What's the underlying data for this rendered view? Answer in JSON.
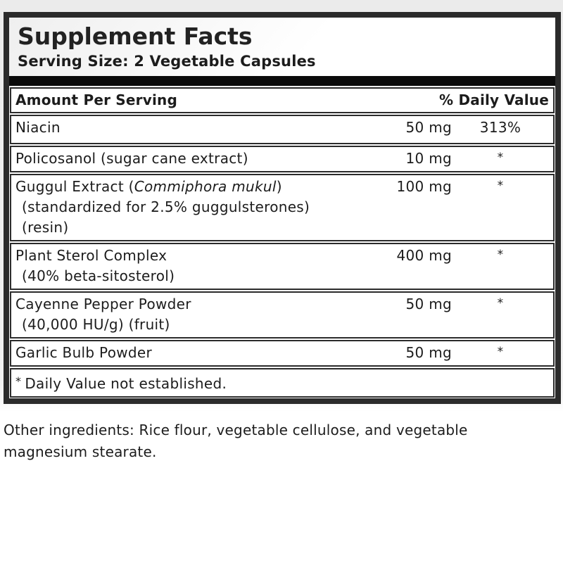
{
  "label": {
    "title": "Supplement Facts",
    "serving_size": "Serving Size: 2 Vegetable Capsules",
    "columns": {
      "amount_header": "Amount Per Serving",
      "dv_header": "% Daily Value"
    },
    "rows": [
      {
        "pre": "Niacin",
        "italic": "",
        "post": "",
        "sub1": "",
        "sub2": "",
        "amount": "50 mg",
        "dv": "313%"
      },
      {
        "pre": "Policosanol (sugar cane extract)",
        "italic": "",
        "post": "",
        "sub1": "",
        "sub2": "",
        "amount": "10 mg",
        "dv": "*"
      },
      {
        "pre": "Guggul Extract (",
        "italic": "Commiphora mukul",
        "post": ")",
        "sub1": "(standardized for 2.5% guggulsterones)",
        "sub2": "(resin)",
        "amount": "100 mg",
        "dv": "*"
      },
      {
        "pre": "Plant Sterol Complex",
        "italic": "",
        "post": "",
        "sub1": "(40% beta-sitosterol)",
        "sub2": "",
        "amount": "400 mg",
        "dv": "*"
      },
      {
        "pre": "Cayenne Pepper Powder",
        "italic": "",
        "post": "",
        "sub1": "(40,000 HU/g) (fruit)",
        "sub2": "",
        "amount": "50 mg",
        "dv": "*"
      },
      {
        "pre": "Garlic Bulb Powder",
        "italic": "",
        "post": "",
        "sub1": "",
        "sub2": "",
        "amount": "50 mg",
        "dv": "*"
      }
    ],
    "footnote_symbol": "*",
    "footnote": "Daily Value not established."
  },
  "other_ingredients": "Other ingredients: Rice flour, vegetable cellulose, and vegetable magnesium stearate.",
  "colors": {
    "frame": "#2b2b2b",
    "thick_bar": "#0b0b0b",
    "text": "#1c1c1c"
  }
}
